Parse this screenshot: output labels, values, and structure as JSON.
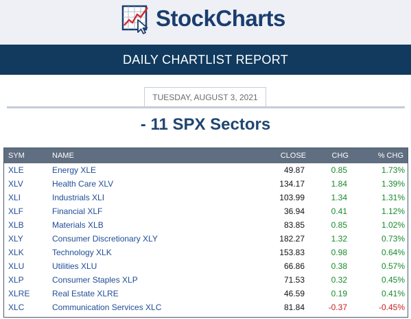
{
  "header": {
    "logo_text": "StockCharts",
    "logo_icon": "stockcharts-chart-cursor-icon",
    "brand_color": "#1a3d6e"
  },
  "banner": {
    "title": "DAILY CHARTLIST REPORT",
    "background": "#113a5e"
  },
  "report": {
    "date": "TUESDAY, AUGUST 3, 2021",
    "title": "- 11 SPX Sectors"
  },
  "table": {
    "columns": {
      "sym": "SYM",
      "name": "NAME",
      "close": "CLOSE",
      "chg": "CHG",
      "pct": "% CHG"
    },
    "colors": {
      "positive": "#178a2a",
      "negative": "#c81e1e",
      "link": "#1f4c96"
    },
    "rows": [
      {
        "sym": "XLE",
        "name": "Energy XLE",
        "close": "49.87",
        "chg": "0.85",
        "pct": "1.73%",
        "dir": "pos"
      },
      {
        "sym": "XLV",
        "name": "Health Care XLV",
        "close": "134.17",
        "chg": "1.84",
        "pct": "1.39%",
        "dir": "pos"
      },
      {
        "sym": "XLI",
        "name": "Industrials XLI",
        "close": "103.99",
        "chg": "1.34",
        "pct": "1.31%",
        "dir": "pos"
      },
      {
        "sym": "XLF",
        "name": "Financial XLF",
        "close": "36.94",
        "chg": "0.41",
        "pct": "1.12%",
        "dir": "pos"
      },
      {
        "sym": "XLB",
        "name": "Materials XLB",
        "close": "83.85",
        "chg": "0.85",
        "pct": "1.02%",
        "dir": "pos"
      },
      {
        "sym": "XLY",
        "name": "Consumer Discretionary XLY",
        "close": "182.27",
        "chg": "1.32",
        "pct": "0.73%",
        "dir": "pos"
      },
      {
        "sym": "XLK",
        "name": "Technology XLK",
        "close": "153.83",
        "chg": "0.98",
        "pct": "0.64%",
        "dir": "pos"
      },
      {
        "sym": "XLU",
        "name": "Utilities XLU",
        "close": "66.86",
        "chg": "0.38",
        "pct": "0.57%",
        "dir": "pos"
      },
      {
        "sym": "XLP",
        "name": "Consumer Staples XLP",
        "close": "71.53",
        "chg": "0.32",
        "pct": "0.45%",
        "dir": "pos"
      },
      {
        "sym": "XLRE",
        "name": "Real Estate XLRE",
        "close": "46.59",
        "chg": "0.19",
        "pct": "0.41%",
        "dir": "pos"
      },
      {
        "sym": "XLC",
        "name": "Communication Services XLC",
        "close": "81.84",
        "chg": "-0.37",
        "pct": "-0.45%",
        "dir": "neg"
      }
    ]
  }
}
